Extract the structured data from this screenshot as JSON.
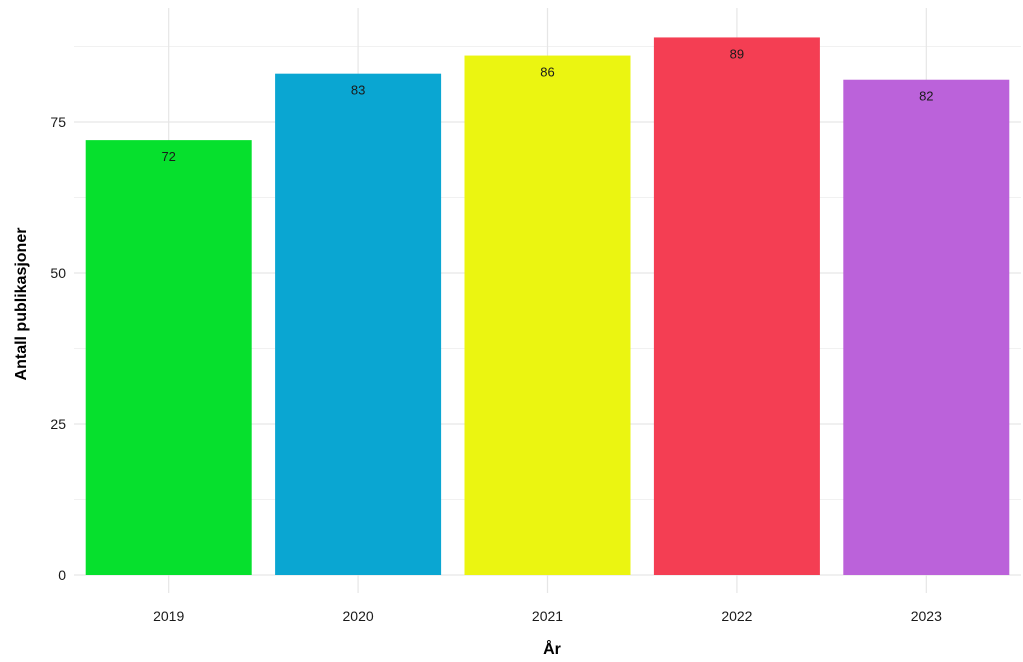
{
  "chart_data": {
    "type": "bar",
    "title": "",
    "xlabel": "År",
    "ylabel": "Antall publikasjoner",
    "categories": [
      "2019",
      "2020",
      "2021",
      "2022",
      "2023"
    ],
    "values": [
      72,
      83,
      86,
      89,
      82
    ],
    "data_labels": [
      "72",
      "83",
      "86",
      "89",
      "82"
    ],
    "colors": [
      "#06e02d",
      "#0aa6d2",
      "#ebf511",
      "#f43e53",
      "#bb62da"
    ],
    "ylim": [
      0,
      90
    ],
    "y_ticks": [
      0,
      25,
      50,
      75
    ],
    "y_tick_labels": [
      "0",
      "25",
      "50",
      "75"
    ],
    "grid": true,
    "legend": "none"
  }
}
